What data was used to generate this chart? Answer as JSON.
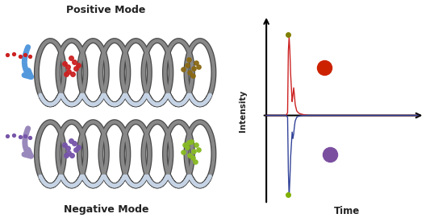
{
  "title_positive": "Positive Mode",
  "title_negative": "Negative Mode",
  "xlabel": "Time",
  "ylabel": "Intensity",
  "background_color": "#ffffff",
  "arrow_blue_color": "#5599dd",
  "arrow_purple_color": "#9988bb",
  "coil_outer": "#484848",
  "coil_inner": "#888888",
  "coil_highlight": "#c5d3e5",
  "red_particle": "#cc2222",
  "brown_particle": "#8B6914",
  "purple_particle": "#7755aa",
  "green_particle": "#88bb22",
  "chart_red": "#cc2222",
  "chart_blue": "#334499",
  "dot_olive": "#808000",
  "dot_red": "#cc2200",
  "dot_purple": "#7b4fa0",
  "dot_green": "#80b000"
}
